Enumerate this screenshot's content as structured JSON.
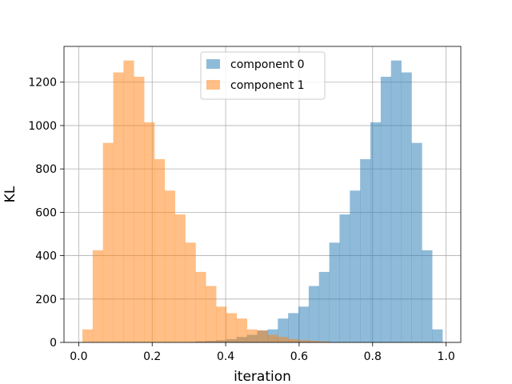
{
  "chart_data": {
    "type": "bar",
    "subtype": "histogram",
    "xlabel": "iteration",
    "ylabel": "KL",
    "xlim": [
      -0.04,
      1.04
    ],
    "ylim": [
      0,
      1365
    ],
    "grid": true,
    "legend_position": "top-center",
    "x_ticks": [
      "0.0",
      "0.2",
      "0.4",
      "0.6",
      "0.8",
      "1.0"
    ],
    "y_ticks": [
      "0",
      "200",
      "400",
      "600",
      "800",
      "1000",
      "1200"
    ],
    "bin_edges": [
      0.01,
      0.038,
      0.066,
      0.094,
      0.122,
      0.15,
      0.178,
      0.206,
      0.234,
      0.262,
      0.29,
      0.318,
      0.346,
      0.374,
      0.402,
      0.43,
      0.458,
      0.486,
      0.514,
      0.542,
      0.57,
      0.598,
      0.626,
      0.654,
      0.682,
      0.71,
      0.738,
      0.766,
      0.794,
      0.822,
      0.85,
      0.878,
      0.906,
      0.934,
      0.962,
      0.99
    ],
    "series": [
      {
        "name": "component 0",
        "color": "#1f77b4",
        "opacity": 0.5,
        "values": [
          0,
          0,
          0,
          0,
          0,
          0,
          0,
          0,
          0,
          0,
          0,
          5,
          7,
          10,
          15,
          25,
          35,
          55,
          60,
          110,
          135,
          165,
          260,
          325,
          460,
          590,
          700,
          845,
          1015,
          1225,
          1300,
          1245,
          920,
          425,
          60
        ]
      },
      {
        "name": "component 1",
        "color": "#ff7f0e",
        "opacity": 0.5,
        "values": [
          60,
          425,
          920,
          1245,
          1300,
          1225,
          1015,
          845,
          700,
          590,
          460,
          325,
          260,
          165,
          135,
          110,
          60,
          55,
          35,
          25,
          15,
          10,
          7,
          5,
          0,
          0,
          0,
          0,
          0,
          0,
          0,
          0,
          0,
          0,
          0
        ]
      }
    ]
  }
}
